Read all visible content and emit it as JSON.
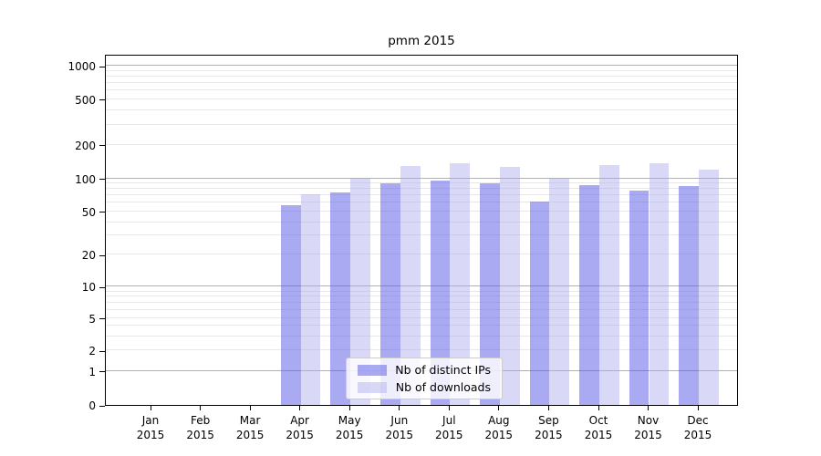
{
  "chart_data": {
    "type": "bar",
    "title": "pmm 2015",
    "categories": [
      "Jan",
      "Feb",
      "Mar",
      "Apr",
      "May",
      "Jun",
      "Jul",
      "Aug",
      "Sep",
      "Oct",
      "Nov",
      "Dec"
    ],
    "category_year": "2015",
    "series": [
      {
        "name": "Nb of distinct IPs",
        "color": "rgba(85,85,230,0.5)",
        "values": [
          0,
          0,
          0,
          57,
          75,
          91,
          96,
          90,
          62,
          87,
          77,
          86
        ]
      },
      {
        "name": "Nb of downloads",
        "color": "rgba(170,170,238,0.45)",
        "values": [
          0,
          0,
          0,
          72,
          101,
          130,
          137,
          127,
          100,
          132,
          136,
          120
        ]
      }
    ],
    "y_ticks": [
      0,
      1,
      2,
      5,
      10,
      20,
      50,
      100,
      200,
      500,
      1000
    ],
    "yscale": "symlog",
    "ylim": [
      0,
      1300
    ],
    "grid": "both",
    "legend_position": "lower center",
    "colors": {
      "major_grid": "#b0b0b0",
      "minor_grid": "#e8e8e8",
      "axis": "#000000"
    }
  }
}
